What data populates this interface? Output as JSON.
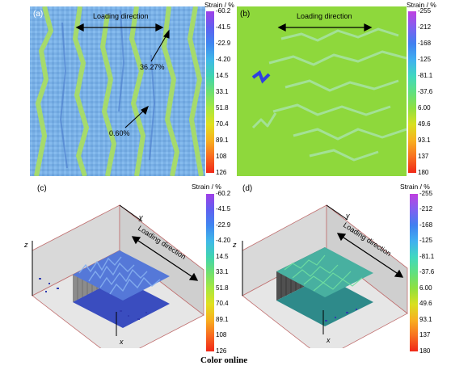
{
  "figure": {
    "caption": "Color online",
    "panels": {
      "a": {
        "label": "(a)",
        "direction_label": "Loading direction",
        "annotation_high": "36.27%",
        "annotation_low": "0.60%",
        "colorbar_title": "Strain / %",
        "colorbar_ticks": [
          "-60.2",
          "-41.5",
          "-22.9",
          "-4.20",
          "14.5",
          "33.1",
          "51.8",
          "70.4",
          "89.1",
          "108",
          "126"
        ],
        "colorbar_colors": [
          "#a040e8",
          "#6060f0",
          "#3f86f0",
          "#40b8e8",
          "#40d4b0",
          "#70e070",
          "#a8e840",
          "#e0e020",
          "#f8b020",
          "#f86a20",
          "#f02818"
        ]
      },
      "b": {
        "label": "(b)",
        "direction_label": "Loading direction",
        "colorbar_title": "Strain / %",
        "colorbar_ticks": [
          "-255",
          "-212",
          "-168",
          "-125",
          "-81.1",
          "-37.6",
          "6.00",
          "49.6",
          "93.1",
          "137",
          "180"
        ],
        "colorbar_colors": [
          "#c040e0",
          "#8060f0",
          "#4080f0",
          "#40b0f0",
          "#40d8c0",
          "#60e080",
          "#90e040",
          "#d8e020",
          "#f8b020",
          "#f87020",
          "#f02818"
        ]
      },
      "c": {
        "label": "(c)",
        "direction_label": "Loading direction",
        "axis_x": "x",
        "axis_y": "y",
        "axis_z": "z",
        "colorbar_title": "Strain / %",
        "colorbar_ticks": [
          "-60.2",
          "-41.5",
          "-22.9",
          "-4.20",
          "14.5",
          "33.1",
          "51.8",
          "70.4",
          "89.1",
          "108",
          "126"
        ],
        "colorbar_colors": [
          "#a040e8",
          "#6060f0",
          "#3f86f0",
          "#40b8e8",
          "#40d4b0",
          "#70e070",
          "#a8e840",
          "#e0e020",
          "#f8b020",
          "#f86a20",
          "#f02818"
        ]
      },
      "d": {
        "label": "(d)",
        "direction_label": "Loading direction",
        "axis_x": "x",
        "axis_y": "y",
        "axis_z": "z",
        "colorbar_title": "Strain / %",
        "colorbar_ticks": [
          "-255",
          "-212",
          "-168",
          "-125",
          "-81.1",
          "-37.6",
          "6.00",
          "49.6",
          "93.1",
          "137",
          "180"
        ],
        "colorbar_colors": [
          "#c040e0",
          "#8060f0",
          "#4080f0",
          "#40b0f0",
          "#40d8c0",
          "#60e080",
          "#90e040",
          "#d8e020",
          "#f8b020",
          "#f87020",
          "#f02818"
        ]
      }
    }
  }
}
